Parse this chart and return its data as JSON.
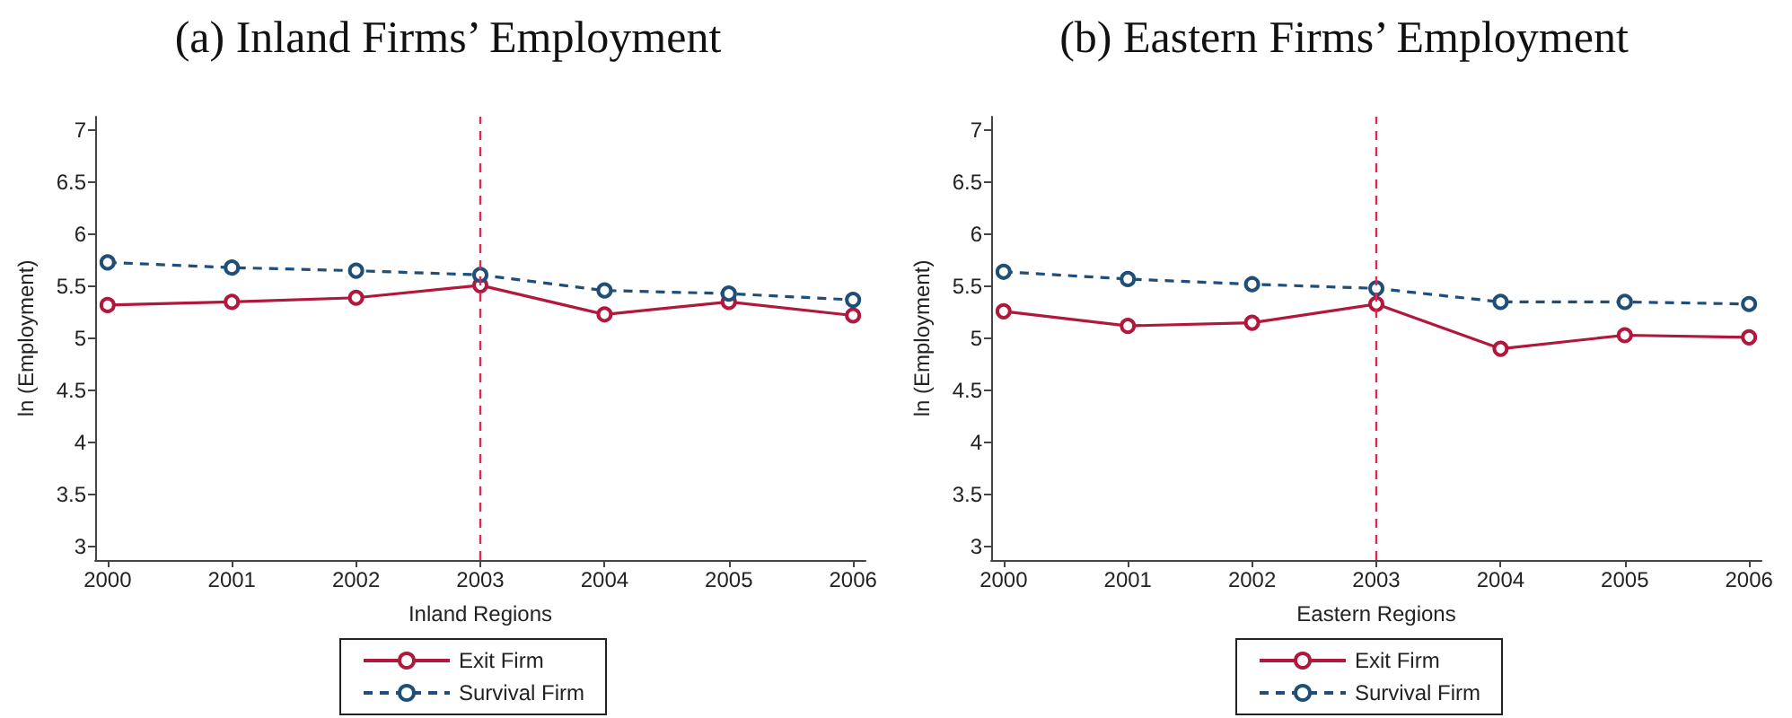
{
  "chart_data": [
    {
      "type": "line",
      "title": "(a) Inland Firms’ Employment",
      "xlabel": "Inland Regions",
      "ylabel": "ln (Employment)",
      "x": [
        2000,
        2001,
        2002,
        2003,
        2004,
        2005,
        2006
      ],
      "series": [
        {
          "name": "Exit Firm",
          "color": "#b0183c",
          "line_style": "solid",
          "values": [
            5.32,
            5.35,
            5.39,
            5.51,
            5.23,
            5.35,
            5.22
          ]
        },
        {
          "name": "Survival Firm",
          "color": "#1f4e79",
          "line_style": "dashed",
          "values": [
            5.73,
            5.68,
            5.65,
            5.61,
            5.46,
            5.43,
            5.37
          ]
        }
      ],
      "xlim": [
        1999.9,
        2006.1
      ],
      "xticks": [
        2000,
        2001,
        2002,
        2003,
        2004,
        2005,
        2006
      ],
      "ylim": [
        2.87,
        7.13
      ],
      "yticks": [
        3,
        3.5,
        4,
        4.5,
        5,
        5.5,
        6,
        6.5,
        7
      ],
      "ref_lines": [
        {
          "axis": "x",
          "value": 2003,
          "color": "#e0284f",
          "line_style": "dashed"
        }
      ],
      "marker": "circle",
      "grid": false,
      "legend": "bottom"
    },
    {
      "type": "line",
      "title": "(b) Eastern Firms’ Employment",
      "xlabel": "Eastern Regions",
      "ylabel": "ln (Employment)",
      "x": [
        2000,
        2001,
        2002,
        2003,
        2004,
        2005,
        2006
      ],
      "series": [
        {
          "name": "Exit Firm",
          "color": "#b0183c",
          "line_style": "solid",
          "values": [
            5.26,
            5.12,
            5.15,
            5.33,
            4.9,
            5.03,
            5.01
          ]
        },
        {
          "name": "Survival Firm",
          "color": "#1f4e79",
          "line_style": "dashed",
          "values": [
            5.64,
            5.57,
            5.52,
            5.48,
            5.35,
            5.35,
            5.33
          ]
        }
      ],
      "xlim": [
        1999.9,
        2006.1
      ],
      "xticks": [
        2000,
        2001,
        2002,
        2003,
        2004,
        2005,
        2006
      ],
      "ylim": [
        2.87,
        7.13
      ],
      "yticks": [
        3,
        3.5,
        4,
        4.5,
        5,
        5.5,
        6,
        6.5,
        7
      ],
      "ref_lines": [
        {
          "axis": "x",
          "value": 2003,
          "color": "#e0284f",
          "line_style": "dashed"
        }
      ],
      "marker": "circle",
      "grid": false,
      "legend": "bottom"
    }
  ]
}
